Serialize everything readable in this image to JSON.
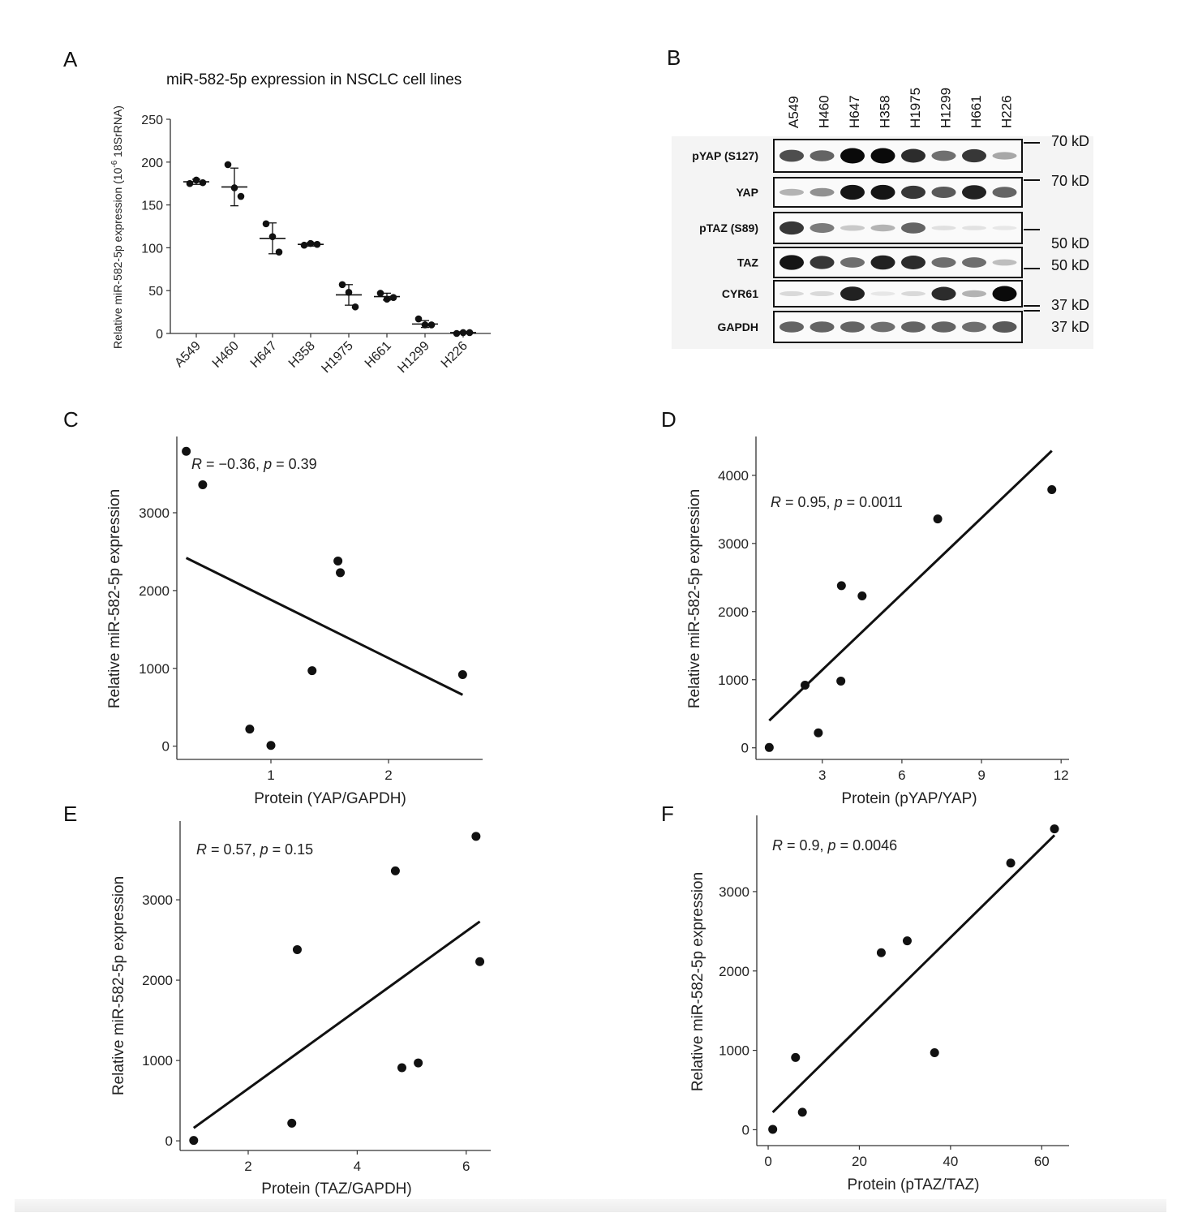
{
  "panels": {
    "A": {
      "letter": "A",
      "title": "miR-582-5p expression in NSCLC cell lines",
      "ylabel": "Relative miR-582-5p expression (10",
      "ylabel_sup": "-6",
      "ylabel_end": " 18SrRNA)"
    },
    "B": {
      "letter": "B",
      "lanes": [
        "A549",
        "H460",
        "H647",
        "H358",
        "H1975",
        "H1299",
        "H661",
        "H226"
      ],
      "proteins": [
        "pYAP (S127)",
        "YAP",
        "pTAZ (S89)",
        "TAZ",
        "CYR61",
        "GAPDH"
      ],
      "markers": [
        "70 kD",
        "70 kD",
        "50 kD",
        "50 kD",
        "37 kD",
        "37 kD"
      ]
    },
    "C": {
      "letter": "C",
      "stat_R": "R",
      "stat_rest": " = −0.36, ",
      "stat_p": "p",
      "stat_end": " = 0.39"
    },
    "D": {
      "letter": "D",
      "stat_R": "R",
      "stat_rest": " = 0.95, ",
      "stat_p": "p",
      "stat_end": " = 0.0011"
    },
    "E": {
      "letter": "E",
      "stat_R": "R",
      "stat_rest": " = 0.57, ",
      "stat_p": "p",
      "stat_end": " = 0.15"
    },
    "F": {
      "letter": "F",
      "stat_R": "R",
      "stat_rest": " = 0.9, ",
      "stat_p": "p",
      "stat_end": " = 0.0046"
    }
  },
  "chart_data": [
    {
      "id": "A",
      "type": "scatter",
      "categories": [
        "A549",
        "H460",
        "H647",
        "H358",
        "H1975",
        "H661",
        "H1299",
        "H226"
      ],
      "replicates": [
        [
          175,
          179,
          176
        ],
        [
          197,
          170,
          160
        ],
        [
          128,
          113,
          95
        ],
        [
          103,
          105,
          104
        ],
        [
          57,
          48,
          31
        ],
        [
          47,
          40,
          42
        ],
        [
          17,
          10,
          10
        ],
        [
          0,
          1,
          1
        ]
      ],
      "means": [
        177,
        171,
        111,
        104,
        45,
        43,
        11,
        1
      ],
      "errors": [
        3,
        22,
        18,
        2,
        12,
        4,
        4,
        1
      ],
      "ylim": [
        0,
        250
      ],
      "yticks": [
        0,
        50,
        100,
        150,
        200,
        250
      ]
    },
    {
      "id": "C",
      "type": "scatter",
      "xlabel": "Protein (YAP/GAPDH)",
      "ylabel": "Relative miR-582-5p expression",
      "xlim": [
        0.2,
        2.8
      ],
      "ylim": [
        -170,
        3980
      ],
      "xticks": [
        1,
        2
      ],
      "yticks": [
        0,
        1000,
        2000,
        3000
      ],
      "x": [
        0.28,
        0.42,
        0.82,
        1.0,
        1.35,
        1.57,
        1.59,
        2.63
      ],
      "y": [
        3790,
        3360,
        220,
        10,
        970,
        2380,
        2230,
        920
      ],
      "fit": [
        [
          0.28,
          2420
        ],
        [
          2.63,
          660
        ]
      ]
    },
    {
      "id": "D",
      "type": "scatter",
      "xlabel": "Protein (pYAP/YAP)",
      "ylabel": "Relative miR-582-5p expression",
      "xlim": [
        0.5,
        12.3
      ],
      "ylim": [
        -170,
        4570
      ],
      "xticks": [
        3,
        6,
        9,
        12
      ],
      "yticks": [
        0,
        1000,
        2000,
        3000,
        4000
      ],
      "x": [
        1.0,
        2.35,
        2.85,
        3.7,
        3.72,
        4.5,
        7.35,
        11.65
      ],
      "y": [
        5,
        920,
        220,
        980,
        2380,
        2230,
        3360,
        3790
      ],
      "fit": [
        [
          1.0,
          400
        ],
        [
          11.65,
          4360
        ]
      ]
    },
    {
      "id": "E",
      "type": "scatter",
      "xlabel": "Protein (TAZ/GAPDH)",
      "ylabel": "Relative miR-582-5p expression",
      "xlim": [
        0.75,
        6.45
      ],
      "ylim": [
        -120,
        3980
      ],
      "xticks": [
        2,
        4,
        6
      ],
      "yticks": [
        0,
        1000,
        2000,
        3000
      ],
      "x": [
        1.0,
        2.8,
        2.9,
        4.7,
        4.82,
        5.12,
        6.18,
        6.25
      ],
      "y": [
        5,
        220,
        2380,
        3360,
        910,
        970,
        3790,
        2230
      ],
      "fit": [
        [
          1.0,
          160
        ],
        [
          6.25,
          2730
        ]
      ]
    },
    {
      "id": "F",
      "type": "scatter",
      "xlabel": "Protein (pTAZ/TAZ)",
      "ylabel": "Relative miR-582-5p expression",
      "xlim": [
        -2.5,
        66
      ],
      "ylim": [
        -200,
        3960
      ],
      "xticks": [
        0,
        20,
        40,
        60
      ],
      "yticks": [
        0,
        1000,
        2000,
        3000
      ],
      "x": [
        1,
        6,
        7.5,
        24.8,
        30.5,
        36.5,
        53.2,
        62.8
      ],
      "y": [
        5,
        910,
        220,
        2230,
        2380,
        970,
        3360,
        3790
      ],
      "fit": [
        [
          1,
          220
        ],
        [
          62.8,
          3710
        ]
      ]
    }
  ]
}
